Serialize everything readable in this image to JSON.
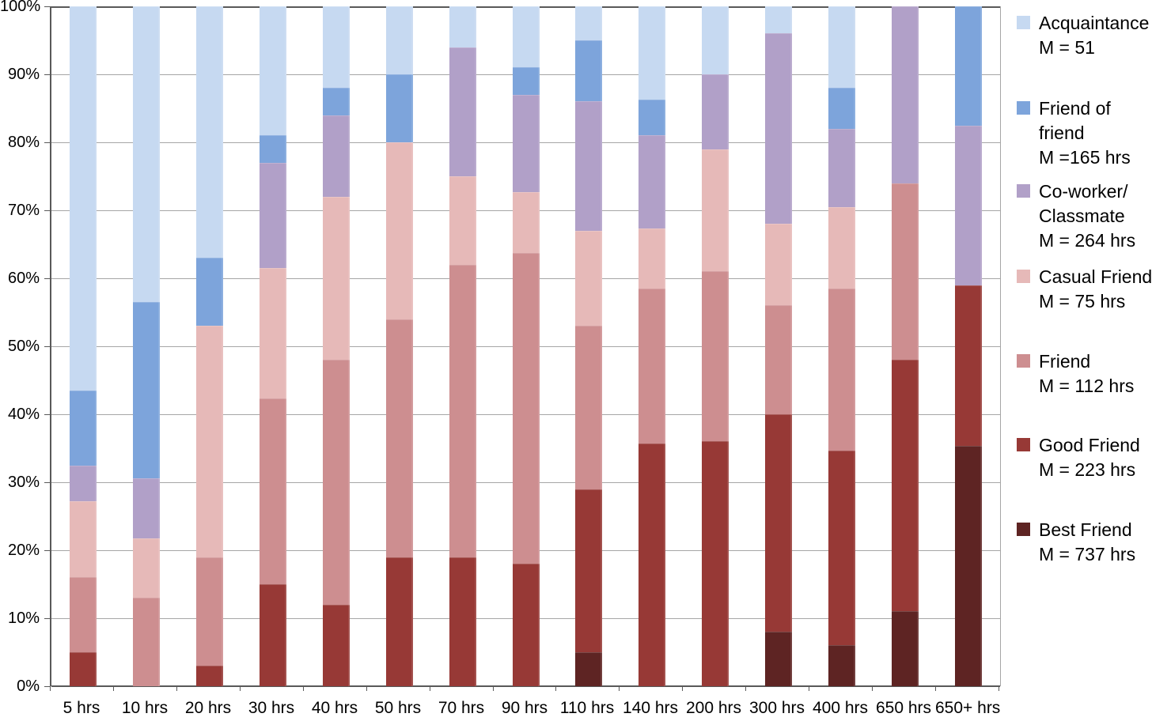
{
  "chart_data": {
    "type": "bar",
    "stacked": true,
    "percent_stacked": true,
    "title": "",
    "xlabel": "",
    "ylabel": "",
    "grid": true,
    "legend_position": "right",
    "ylim": [
      0,
      100
    ],
    "categories": [
      "5 hrs",
      "10 hrs",
      "20 hrs",
      "30 hrs",
      "40 hrs",
      "50 hrs",
      "70 hrs",
      "90 hrs",
      "110 hrs",
      "140 hrs",
      "200 hrs",
      "300 hrs",
      "400 hrs",
      "650 hrs",
      "650+ hrs"
    ],
    "y_axis": {
      "ticks": [
        "0%",
        "10%",
        "20%",
        "30%",
        "40%",
        "50%",
        "60%",
        "70%",
        "80%",
        "90%",
        "100%"
      ]
    },
    "series": [
      {
        "name": "Best Friend",
        "color": "#5e2423",
        "values": [
          0,
          0,
          0,
          0,
          0,
          0,
          0,
          0,
          5,
          0,
          0,
          8,
          6,
          11,
          35.3
        ]
      },
      {
        "name": "Good Friend",
        "color": "#973936",
        "values": [
          5,
          0,
          3,
          15,
          12,
          19,
          19,
          18,
          24,
          35.7,
          36,
          32,
          28.6,
          37,
          23.7
        ]
      },
      {
        "name": "Friend",
        "color": "#cd8e90",
        "values": [
          11,
          13,
          16,
          27.3,
          36,
          35,
          43,
          45.7,
          24,
          22.8,
          25,
          16,
          23.9,
          26,
          0
        ]
      },
      {
        "name": "Casual Friend",
        "color": "#e6b9b8",
        "values": [
          11.2,
          8.7,
          34,
          19.2,
          24,
          26,
          13,
          9,
          14,
          8.8,
          18,
          12,
          12,
          0,
          0
        ]
      },
      {
        "name": "Co-worker/Classmate",
        "color": "#b1a0c8",
        "values": [
          5.3,
          8.9,
          0,
          15.5,
          12,
          0,
          19,
          14.3,
          19,
          13.7,
          11,
          28,
          11.5,
          26,
          23.4
        ]
      },
      {
        "name": "Friend of friend",
        "color": "#7da4db",
        "values": [
          11,
          25.9,
          10,
          4,
          4,
          10,
          0,
          4,
          9,
          5.3,
          0,
          0,
          6,
          0,
          17.6
        ]
      },
      {
        "name": "Acquaintance",
        "color": "#c6d9f1",
        "values": [
          56.5,
          43.5,
          37,
          19,
          12,
          10,
          6,
          9,
          5,
          13.7,
          10,
          4,
          12,
          0,
          0
        ]
      }
    ],
    "colors": {
      "gridline": "#a6a6a6",
      "axis": "#595959"
    }
  },
  "legend": {
    "items": [
      {
        "series": "Acquaintance",
        "lines": [
          "Acquaintance"
        ],
        "value": "M = 51"
      },
      {
        "series": "Friend of friend",
        "lines": [
          "Friend of",
          "friend"
        ],
        "value": "M =165 hrs"
      },
      {
        "series": "Co-worker/Classmate",
        "lines": [
          "Co-worker/",
          "Classmate"
        ],
        "value": "M = 264 hrs"
      },
      {
        "series": "Casual Friend",
        "lines": [
          "Casual Friend"
        ],
        "value": "M = 75 hrs"
      },
      {
        "series": "Friend",
        "lines": [
          "Friend"
        ],
        "value": "M = 112 hrs"
      },
      {
        "series": "Good Friend",
        "lines": [
          "Good Friend"
        ],
        "value": "M = 223 hrs"
      },
      {
        "series": "Best Friend",
        "lines": [
          "Best Friend"
        ],
        "value": "M = 737 hrs"
      }
    ]
  }
}
